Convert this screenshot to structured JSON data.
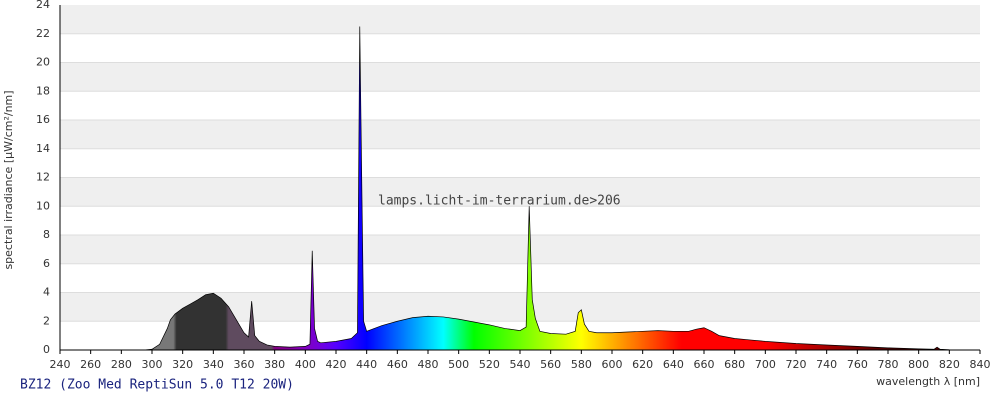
{
  "chart_data": {
    "type": "area",
    "title": "BZ12 (Zoo Med ReptiSun 5.0 T12 20W)",
    "watermark": "lamps.licht-im-terrarium.de>206",
    "x_label": "wavelength λ [nm]",
    "y_label": "spectral irradiance [µW/cm²/nm]",
    "x": [
      240,
      245,
      250,
      255,
      260,
      265,
      270,
      275,
      280,
      285,
      290,
      295,
      300,
      305,
      310,
      312,
      315,
      320,
      325,
      330,
      335,
      340,
      345,
      350,
      355,
      360,
      363,
      365,
      367,
      370,
      375,
      380,
      390,
      400,
      403,
      404.5,
      406,
      408,
      410,
      420,
      430,
      434,
      435.5,
      437,
      438,
      440,
      445,
      450,
      460,
      470,
      480,
      490,
      500,
      510,
      520,
      530,
      540,
      544,
      546,
      548,
      550,
      553,
      560,
      570,
      576,
      578,
      580,
      582,
      585,
      590,
      600,
      610,
      620,
      630,
      640,
      650,
      655,
      660,
      665,
      670,
      680,
      690,
      700,
      720,
      740,
      760,
      780,
      800,
      810,
      812,
      814,
      820,
      840
    ],
    "values": [
      0,
      0,
      0,
      0,
      0,
      0,
      0,
      0,
      0,
      0,
      0,
      0,
      0.05,
      0.4,
      1.5,
      2.1,
      2.5,
      2.9,
      3.2,
      3.5,
      3.85,
      3.95,
      3.6,
      3.0,
      2.1,
      1.2,
      0.9,
      3.4,
      1.0,
      0.6,
      0.35,
      0.25,
      0.2,
      0.25,
      0.4,
      6.9,
      1.5,
      0.6,
      0.5,
      0.6,
      0.8,
      1.2,
      22.5,
      10,
      2,
      1.3,
      1.5,
      1.7,
      2.0,
      2.25,
      2.35,
      2.3,
      2.15,
      1.95,
      1.75,
      1.5,
      1.35,
      1.6,
      10.0,
      3.5,
      2.2,
      1.3,
      1.15,
      1.1,
      1.3,
      2.6,
      2.8,
      1.8,
      1.3,
      1.2,
      1.2,
      1.25,
      1.3,
      1.35,
      1.3,
      1.3,
      1.45,
      1.55,
      1.3,
      1.0,
      0.8,
      0.7,
      0.6,
      0.45,
      0.35,
      0.25,
      0.15,
      0.08,
      0.05,
      0.2,
      0.05,
      0.02,
      0
    ],
    "xlim": [
      240,
      840
    ],
    "ylim": [
      0,
      24
    ],
    "xticks": [
      240,
      260,
      280,
      300,
      320,
      340,
      360,
      380,
      400,
      420,
      440,
      460,
      480,
      500,
      520,
      540,
      560,
      580,
      600,
      620,
      640,
      660,
      680,
      700,
      720,
      740,
      760,
      780,
      800,
      820,
      840
    ],
    "yticks": [
      0,
      2,
      4,
      6,
      8,
      10,
      12,
      14,
      16,
      18,
      20,
      22,
      24
    ],
    "grid": true
  }
}
